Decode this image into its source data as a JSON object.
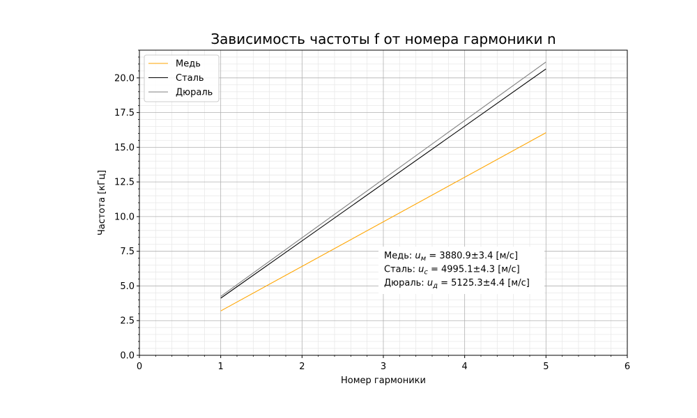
{
  "chart_data": {
    "type": "line",
    "title": "Зависимость частоты f от номера гармоники n",
    "xlabel": "Номер гармоники",
    "ylabel": "Частота [кГц]",
    "xlim": [
      0,
      6
    ],
    "ylim": [
      0,
      22
    ],
    "x_ticks": [
      "0",
      "1",
      "2",
      "3",
      "4",
      "5",
      "6"
    ],
    "y_ticks": [
      "0.0",
      "2.5",
      "5.0",
      "7.5",
      "10.0",
      "12.5",
      "15.0",
      "17.5",
      "20.0"
    ],
    "grid": true,
    "minor_grid": true,
    "legend_position": "top-left",
    "series": [
      {
        "name": "Медь",
        "color": "#ffa500",
        "x": [
          1,
          5
        ],
        "y": [
          3.2,
          16.05
        ]
      },
      {
        "name": "Сталь",
        "color": "#000000",
        "x": [
          1,
          5
        ],
        "y": [
          4.12,
          20.65
        ]
      },
      {
        "name": "Дюраль",
        "color": "#808080",
        "x": [
          1,
          5
        ],
        "y": [
          4.25,
          21.15
        ]
      }
    ],
    "annotation": {
      "lines": [
        {
          "prefix": "Медь: ",
          "var": "u",
          "sub": "м",
          "suffix": " = 3880.9±3.4 [м/с]"
        },
        {
          "prefix": "Сталь: ",
          "var": "u",
          "sub": "с",
          "suffix": " = 4995.1±4.3 [м/с]"
        },
        {
          "prefix": "Дюраль: ",
          "var": "u",
          "sub": "д",
          "suffix": " = 5125.3±4.4 [м/с]"
        }
      ]
    }
  }
}
